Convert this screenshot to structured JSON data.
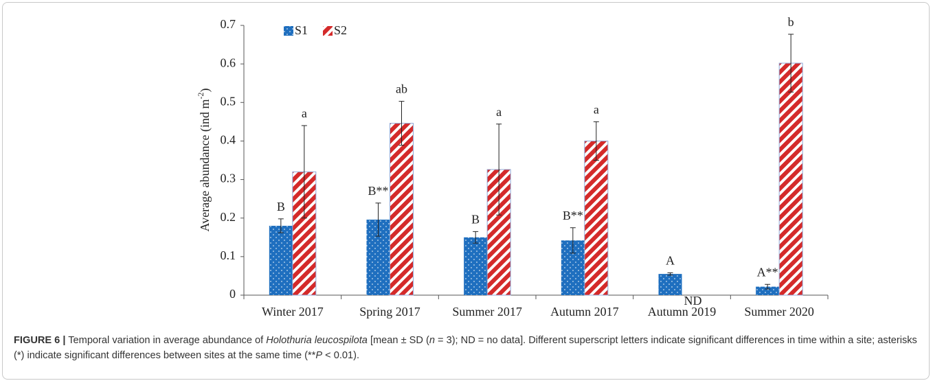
{
  "chart_data": {
    "type": "bar",
    "ylabel": [
      "Average abundance (ind m",
      "-2",
      ")"
    ],
    "categories": [
      "Winter 2017",
      "Spring 2017",
      "Summer 2017",
      "Autumn 2017",
      "Autumn 2019",
      "Summer 2020"
    ],
    "series": [
      {
        "name": "S1",
        "color": "#1f6fbf",
        "pattern": "dots",
        "values": [
          0.18,
          0.196,
          0.15,
          0.142,
          0.055,
          0.022
        ],
        "errors": [
          0.018,
          0.043,
          0.015,
          0.033,
          0.003,
          0.006
        ],
        "letters": [
          "B",
          "B**",
          "B",
          "B**",
          "A",
          "A**"
        ]
      },
      {
        "name": "S2",
        "color": "#d42a2a",
        "pattern": "stripes",
        "values": [
          0.32,
          0.446,
          0.326,
          0.4,
          null,
          0.602
        ],
        "errors": [
          0.12,
          0.057,
          0.118,
          0.05,
          null,
          0.075
        ],
        "letters": [
          "a",
          "ab",
          "a",
          "a",
          "ND",
          "b"
        ]
      }
    ],
    "ylim": [
      0,
      0.7
    ],
    "yticks": [
      0,
      0.1,
      0.2,
      0.3,
      0.4,
      0.5,
      0.6,
      0.7
    ],
    "grid": false,
    "legend": "top-left"
  },
  "caption": {
    "label": "FIGURE 6 |",
    "parts": [
      {
        "text": " Temporal variation in average abundance of ",
        "italic": false
      },
      {
        "text": "Holothuria leucospilota",
        "italic": true
      },
      {
        "text": " [mean ± SD (",
        "italic": false
      },
      {
        "text": "n",
        "italic": true
      },
      {
        "text": " = 3); ND = no data]. Different superscript letters indicate significant differences in time within a site; asterisks (*) indicate significant differences between sites at the same time (**",
        "italic": false
      },
      {
        "text": "P",
        "italic": true
      },
      {
        "text": " < 0.01).",
        "italic": false
      }
    ]
  }
}
